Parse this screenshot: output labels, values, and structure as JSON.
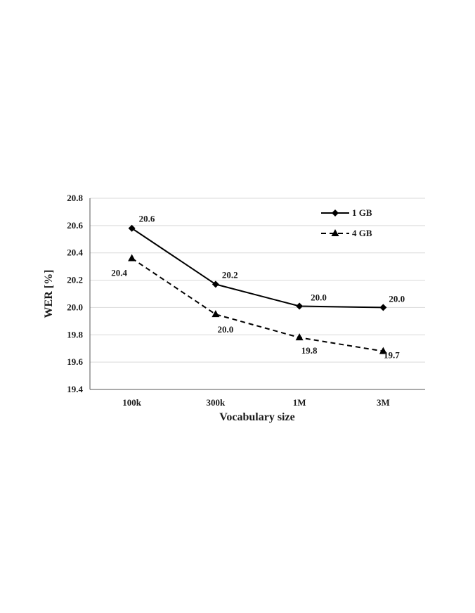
{
  "chart_data": {
    "type": "line",
    "categories": [
      "100k",
      "300k",
      "1M",
      "3M"
    ],
    "xlabel": "Vocabulary size",
    "ylabel": "WER [%]",
    "ylim": [
      19.4,
      20.8
    ],
    "yticks": [
      "19.4",
      "19.6",
      "19.8",
      "20.0",
      "20.2",
      "20.4",
      "20.6",
      "20.8"
    ],
    "grid": true,
    "legend_position": "top-right",
    "series": [
      {
        "name": "1 GB",
        "values": [
          20.58,
          20.17,
          20.01,
          20.0
        ],
        "labels": [
          "20.6",
          "20.2",
          "20.0",
          "20.0"
        ],
        "marker": "diamond",
        "line_style": "solid",
        "color": "#000000"
      },
      {
        "name": "4 GB",
        "values": [
          20.36,
          19.95,
          19.78,
          19.68
        ],
        "labels": [
          "20.4",
          "20.0",
          "19.8",
          "19.7"
        ],
        "marker": "triangle",
        "line_style": "dashed",
        "color": "#000000"
      }
    ]
  }
}
